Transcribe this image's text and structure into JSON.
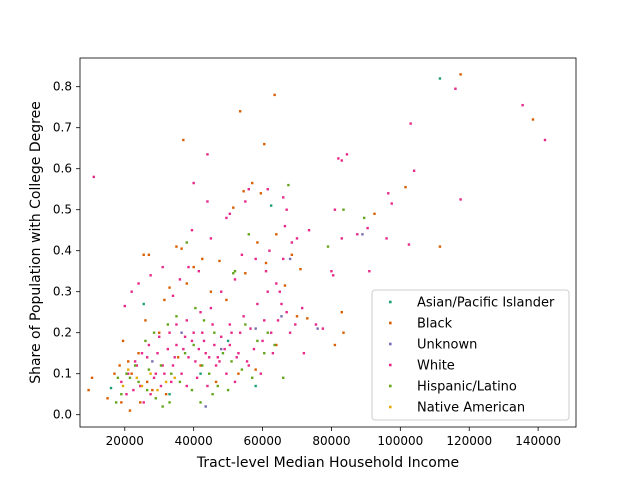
{
  "chart_data": {
    "type": "scatter",
    "xlabel": "Tract-level Median Household Income",
    "ylabel": "Share of Population with College Degree",
    "xlim": [
      7000,
      151000
    ],
    "ylim": [
      -0.03,
      0.87
    ],
    "xticks": [
      20000,
      40000,
      60000,
      80000,
      100000,
      120000,
      140000
    ],
    "xtick_labels": [
      "20000",
      "40000",
      "60000",
      "80000",
      "100000",
      "120000",
      "140000"
    ],
    "yticks": [
      0.0,
      0.1,
      0.2,
      0.3,
      0.4,
      0.5,
      0.6,
      0.7,
      0.8
    ],
    "ytick_labels": [
      "0.0",
      "0.1",
      "0.2",
      "0.3",
      "0.4",
      "0.5",
      "0.6",
      "0.7",
      "0.8"
    ],
    "grid": false,
    "legend_position": "bottom-right",
    "series": [
      {
        "name": "Asian/Pacific Islander",
        "color": "#1b9e77",
        "points": [
          [
            111500,
            0.82
          ],
          [
            62500,
            0.51
          ],
          [
            25500,
            0.27
          ],
          [
            16000,
            0.065
          ],
          [
            58000,
            0.07
          ],
          [
            33000,
            0.05
          ],
          [
            42000,
            0.1
          ],
          [
            50000,
            0.18
          ]
        ]
      },
      {
        "name": "Black",
        "color": "#d95f02",
        "points": [
          [
            117500,
            0.83
          ],
          [
            138500,
            0.72
          ],
          [
            63500,
            0.78
          ],
          [
            53500,
            0.74
          ],
          [
            37000,
            0.67
          ],
          [
            60500,
            0.66
          ],
          [
            101500,
            0.555
          ],
          [
            111500,
            0.41
          ],
          [
            92500,
            0.49
          ],
          [
            57000,
            0.565
          ],
          [
            59500,
            0.54
          ],
          [
            54500,
            0.545
          ],
          [
            51500,
            0.505
          ],
          [
            64000,
            0.44
          ],
          [
            61000,
            0.37
          ],
          [
            58500,
            0.42
          ],
          [
            47500,
            0.375
          ],
          [
            42500,
            0.38
          ],
          [
            35000,
            0.41
          ],
          [
            36500,
            0.405
          ],
          [
            25500,
            0.39
          ],
          [
            27000,
            0.39
          ],
          [
            40000,
            0.36
          ],
          [
            68500,
            0.39
          ],
          [
            71000,
            0.355
          ],
          [
            83500,
            0.2
          ],
          [
            83000,
            0.25
          ],
          [
            81000,
            0.17
          ],
          [
            73000,
            0.235
          ],
          [
            66500,
            0.315
          ],
          [
            55000,
            0.345
          ],
          [
            49500,
            0.28
          ],
          [
            45000,
            0.3
          ],
          [
            38000,
            0.32
          ],
          [
            33000,
            0.31
          ],
          [
            31500,
            0.28
          ],
          [
            26000,
            0.23
          ],
          [
            30000,
            0.2
          ],
          [
            24000,
            0.15
          ],
          [
            21000,
            0.13
          ],
          [
            18500,
            0.12
          ],
          [
            17000,
            0.1
          ],
          [
            22000,
            0.1
          ],
          [
            26500,
            0.08
          ],
          [
            28000,
            0.06
          ],
          [
            32000,
            0.05
          ],
          [
            24500,
            0.03
          ],
          [
            19000,
            0.03
          ],
          [
            21500,
            0.01
          ],
          [
            9500,
            0.06
          ],
          [
            10500,
            0.09
          ],
          [
            15000,
            0.04
          ],
          [
            19500,
            0.18
          ],
          [
            35500,
            0.14
          ],
          [
            42000,
            0.12
          ],
          [
            46500,
            0.08
          ],
          [
            53000,
            0.1
          ],
          [
            58000,
            0.11
          ],
          [
            64000,
            0.17
          ],
          [
            70000,
            0.24
          ]
        ]
      },
      {
        "name": "Unknown",
        "color": "#7570b3",
        "points": [
          [
            89000,
            0.44
          ],
          [
            76000,
            0.21
          ],
          [
            43500,
            0.02
          ],
          [
            65500,
            0.24
          ],
          [
            36500,
            0.2
          ],
          [
            58000,
            0.21
          ],
          [
            28000,
            0.13
          ],
          [
            48000,
            0.16
          ],
          [
            68000,
            0.38
          ]
        ]
      },
      {
        "name": "White",
        "color": "#e7298a",
        "points": [
          [
            116000,
            0.795
          ],
          [
            135500,
            0.755
          ],
          [
            142000,
            0.67
          ],
          [
            103000,
            0.71
          ],
          [
            117500,
            0.525
          ],
          [
            104000,
            0.595
          ],
          [
            96500,
            0.54
          ],
          [
            97500,
            0.515
          ],
          [
            11000,
            0.58
          ],
          [
            44000,
            0.635
          ],
          [
            40000,
            0.565
          ],
          [
            44000,
            0.52
          ],
          [
            84500,
            0.635
          ],
          [
            82000,
            0.625
          ],
          [
            83000,
            0.62
          ],
          [
            96000,
            0.43
          ],
          [
            102500,
            0.415
          ],
          [
            90500,
            0.455
          ],
          [
            91000,
            0.35
          ],
          [
            87500,
            0.44
          ],
          [
            83000,
            0.43
          ],
          [
            81000,
            0.5
          ],
          [
            80000,
            0.35
          ],
          [
            80500,
            0.34
          ],
          [
            66000,
            0.53
          ],
          [
            67000,
            0.5
          ],
          [
            66500,
            0.46
          ],
          [
            61500,
            0.55
          ],
          [
            56000,
            0.55
          ],
          [
            50500,
            0.49
          ],
          [
            49500,
            0.48
          ],
          [
            55000,
            0.52
          ],
          [
            68500,
            0.42
          ],
          [
            73500,
            0.45
          ],
          [
            70000,
            0.43
          ],
          [
            62000,
            0.4
          ],
          [
            66000,
            0.38
          ],
          [
            71500,
            0.26
          ],
          [
            75500,
            0.22
          ],
          [
            77500,
            0.21
          ],
          [
            72000,
            0.15
          ],
          [
            68000,
            0.2
          ],
          [
            65000,
            0.3
          ],
          [
            61000,
            0.35
          ],
          [
            58000,
            0.38
          ],
          [
            54000,
            0.39
          ],
          [
            52000,
            0.33
          ],
          [
            48000,
            0.3
          ],
          [
            45000,
            0.26
          ],
          [
            41500,
            0.35
          ],
          [
            38500,
            0.36
          ],
          [
            36000,
            0.33
          ],
          [
            34000,
            0.29
          ],
          [
            31000,
            0.36
          ],
          [
            27500,
            0.34
          ],
          [
            24000,
            0.32
          ],
          [
            22000,
            0.3
          ],
          [
            20000,
            0.265
          ],
          [
            39500,
            0.45
          ],
          [
            45000,
            0.43
          ],
          [
            42000,
            0.25
          ],
          [
            38000,
            0.23
          ],
          [
            35000,
            0.22
          ],
          [
            33000,
            0.2
          ],
          [
            30000,
            0.19
          ],
          [
            27000,
            0.17
          ],
          [
            25000,
            0.15
          ],
          [
            23000,
            0.13
          ],
          [
            21000,
            0.1
          ],
          [
            19000,
            0.08
          ],
          [
            29000,
            0.1
          ],
          [
            31000,
            0.12
          ],
          [
            34500,
            0.14
          ],
          [
            37000,
            0.16
          ],
          [
            39500,
            0.18
          ],
          [
            42500,
            0.2
          ],
          [
            45500,
            0.22
          ],
          [
            48000,
            0.19
          ],
          [
            50500,
            0.17
          ],
          [
            53000,
            0.15
          ],
          [
            55500,
            0.13
          ],
          [
            57500,
            0.16
          ],
          [
            60000,
            0.18
          ],
          [
            62500,
            0.2
          ],
          [
            64500,
            0.23
          ],
          [
            67000,
            0.25
          ],
          [
            69500,
            0.22
          ],
          [
            40500,
            0.13
          ],
          [
            43500,
            0.15
          ],
          [
            46500,
            0.12
          ],
          [
            49500,
            0.1
          ],
          [
            52000,
            0.08
          ],
          [
            36500,
            0.1
          ],
          [
            33500,
            0.08
          ],
          [
            30500,
            0.07
          ],
          [
            27500,
            0.05
          ],
          [
            25500,
            0.03
          ],
          [
            38000,
            0.07
          ],
          [
            41000,
            0.09
          ],
          [
            44000,
            0.07
          ],
          [
            47000,
            0.14
          ],
          [
            51000,
            0.2
          ],
          [
            54500,
            0.24
          ],
          [
            58500,
            0.27
          ],
          [
            61500,
            0.3
          ],
          [
            64000,
            0.32
          ],
          [
            35000,
            0.17
          ],
          [
            32500,
            0.16
          ],
          [
            29500,
            0.15
          ],
          [
            26500,
            0.14
          ],
          [
            23500,
            0.12
          ],
          [
            40000,
            0.2
          ],
          [
            43000,
            0.18
          ],
          [
            46000,
            0.17
          ],
          [
            49000,
            0.16
          ],
          [
            52500,
            0.14
          ],
          [
            56000,
            0.12
          ],
          [
            59500,
            0.1
          ],
          [
            63000,
            0.15
          ],
          [
            37500,
            0.19
          ],
          [
            34000,
            0.12
          ],
          [
            31500,
            0.1
          ],
          [
            28500,
            0.09
          ],
          [
            24500,
            0.07
          ],
          [
            22500,
            0.06
          ],
          [
            20500,
            0.05
          ],
          [
            38500,
            0.14
          ],
          [
            41500,
            0.16
          ],
          [
            44500,
            0.14
          ],
          [
            47500,
            0.13
          ],
          [
            50500,
            0.22
          ],
          [
            53500,
            0.2
          ],
          [
            56500,
            0.21
          ],
          [
            60500,
            0.23
          ],
          [
            65500,
            0.27
          ]
        ]
      },
      {
        "name": "Hispanic/Latino",
        "color": "#66a61e",
        "points": [
          [
            67500,
            0.56
          ],
          [
            66000,
            0.09
          ],
          [
            83500,
            0.5
          ],
          [
            89500,
            0.48
          ],
          [
            79000,
            0.41
          ],
          [
            56000,
            0.44
          ],
          [
            52000,
            0.35
          ],
          [
            51500,
            0.345
          ],
          [
            38000,
            0.42
          ],
          [
            40500,
            0.26
          ],
          [
            43000,
            0.23
          ],
          [
            46000,
            0.2
          ],
          [
            48500,
            0.15
          ],
          [
            51000,
            0.13
          ],
          [
            54000,
            0.11
          ],
          [
            57000,
            0.09
          ],
          [
            60500,
            0.15
          ],
          [
            63500,
            0.17
          ],
          [
            45500,
            0.05
          ],
          [
            47000,
            0.07
          ],
          [
            42000,
            0.03
          ],
          [
            31000,
            0.02
          ],
          [
            29000,
            0.04
          ],
          [
            26500,
            0.06
          ],
          [
            24000,
            0.08
          ],
          [
            21500,
            0.09
          ],
          [
            19000,
            0.05
          ],
          [
            17500,
            0.03
          ],
          [
            30500,
            0.12
          ],
          [
            33500,
            0.1
          ],
          [
            36000,
            0.08
          ],
          [
            39500,
            0.06
          ],
          [
            35000,
            0.24
          ],
          [
            32500,
            0.22
          ],
          [
            28500,
            0.2
          ],
          [
            26000,
            0.18
          ],
          [
            37500,
            0.15
          ],
          [
            40000,
            0.17
          ],
          [
            42500,
            0.12
          ],
          [
            50000,
            0.06
          ],
          [
            55000,
            0.22
          ],
          [
            58500,
            0.18
          ],
          [
            61500,
            0.2
          ],
          [
            33000,
            0.03
          ],
          [
            27000,
            0.11
          ],
          [
            23000,
            0.12
          ],
          [
            20500,
            0.1
          ],
          [
            18000,
            0.09
          ],
          [
            44500,
            0.1
          ]
        ]
      },
      {
        "name": "Native American",
        "color": "#e6ab02",
        "points": [
          [
            23500,
            0.09
          ],
          [
            27500,
            0.1
          ],
          [
            32000,
            0.08
          ],
          [
            21000,
            0.11
          ],
          [
            25000,
            0.07
          ],
          [
            29500,
            0.06
          ],
          [
            34500,
            0.09
          ],
          [
            19500,
            0.07
          ]
        ]
      }
    ]
  }
}
